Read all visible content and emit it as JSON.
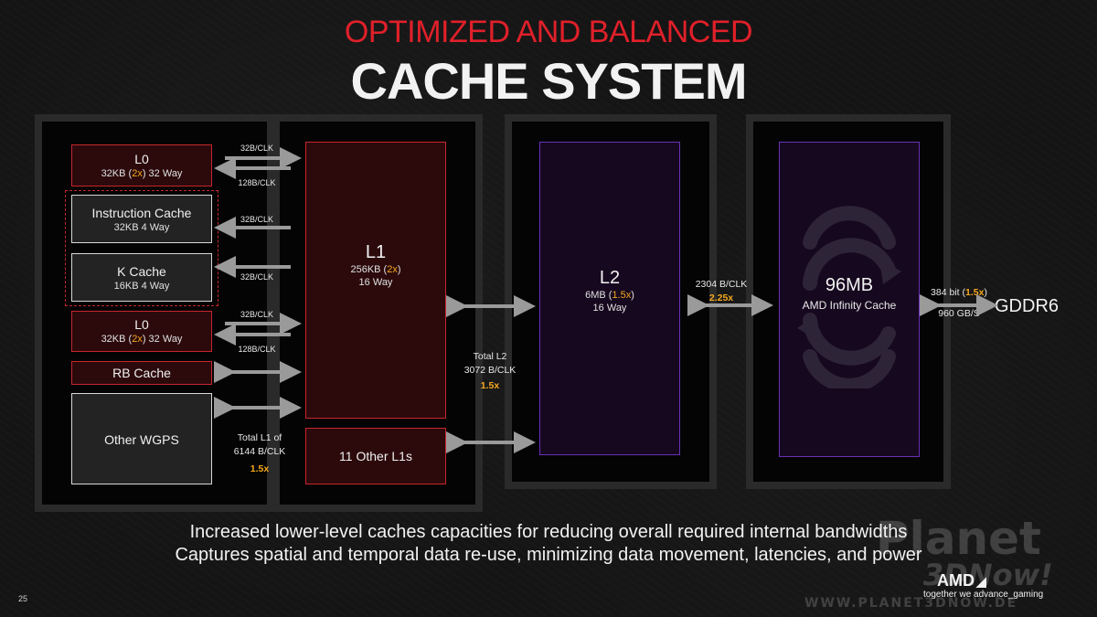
{
  "header": {
    "subtitle": "OPTIMIZED AND BALANCED",
    "title": "CACHE SYSTEM"
  },
  "wgp": {
    "l0_top": {
      "name": "L0",
      "detail_pre": "32KB (",
      "detail_mult": "2x",
      "detail_post": ") 32 Way"
    },
    "instruction_cache": {
      "name": "Instruction Cache",
      "detail": "32KB 4 Way"
    },
    "k_cache": {
      "name": "K Cache",
      "detail": "16KB 4 Way"
    },
    "l0_bottom": {
      "name": "L0",
      "detail_pre": "32KB (",
      "detail_mult": "2x",
      "detail_post": ") 32 Way"
    },
    "rb_cache": {
      "name": "RB Cache"
    },
    "other_wgps": {
      "name": "Other WGPS"
    }
  },
  "bandwidth_labels": {
    "l0_top_up": "32B/CLK",
    "l0_top_down": "128B/CLK",
    "icache": "32B/CLK",
    "kcache": "32B/CLK",
    "l0_bottom_up": "32B/CLK",
    "l0_bottom_down": "128B/CLK"
  },
  "total_l1": {
    "line1": "Total L1 of",
    "line2": "6144  B/CLK",
    "mult": "1.5x"
  },
  "l1": {
    "name": "L1",
    "detail_pre": "256KB (",
    "detail_mult": "2x",
    "detail_post": ")",
    "ways": "16 Way"
  },
  "other_l1s": {
    "name": "11 Other L1s"
  },
  "total_l2": {
    "line1": "Total L2",
    "line2": "3072 B/CLK",
    "mult": "1.5x"
  },
  "l2": {
    "name": "L2",
    "detail_pre": "6MB (",
    "detail_mult": "1.5x",
    "detail_post": ")",
    "ways": "16 Way"
  },
  "l2_infinity_bw": {
    "line1": "2304 B/CLK",
    "mult": "2.25x"
  },
  "infinity_cache": {
    "size": "96MB",
    "name": "AMD Infinity Cache"
  },
  "gddr_bw": {
    "pre": "384 bit (",
    "mult": "1.5x",
    "post": ")",
    "line2": "960 GB/S"
  },
  "gddr": {
    "name": "GDDR6"
  },
  "footer": {
    "line1": "Increased lower-level caches capacities for reducing overall required internal bandwidths",
    "line2": "Captures spatial and temporal data re-use, minimizing data movement, latencies, and power"
  },
  "page_number": "25",
  "brand": {
    "logo": "AMD",
    "tagline": "together we advance_gaming"
  },
  "watermark": {
    "line1": "Planet",
    "line2": "3DNow!",
    "url": "WWW.PLANET3DNOW.DE"
  },
  "colors": {
    "accent_red": "#c6262c",
    "title_red": "#e0202a",
    "highlight": "#f4a81e",
    "purple": "#6a30b8"
  }
}
